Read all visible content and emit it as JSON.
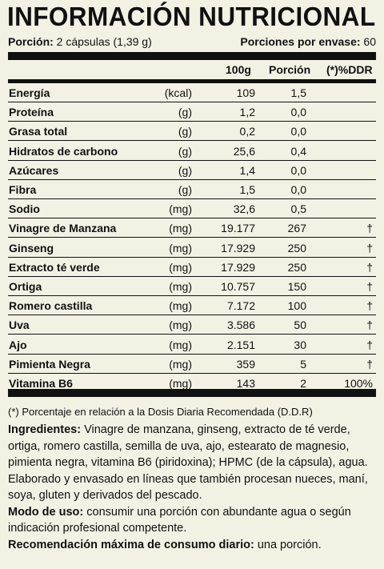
{
  "title": "INFORMACIÓN NUTRICIONAL",
  "serving": {
    "portion_label": "Porción:",
    "portion_value": "2 cápsulas (1,39 g)",
    "per_container_label": "Porciones por envase:",
    "per_container_value": "60"
  },
  "columns": {
    "per100": "100g",
    "portion": "Porción",
    "ddr": "(*)%DDR"
  },
  "rows": [
    {
      "name": "Energía",
      "unit": "(kcal)",
      "per100": "109",
      "portion": "1,5",
      "ddr": ""
    },
    {
      "name": "Proteína",
      "unit": "(g)",
      "per100": "1,2",
      "portion": "0,0",
      "ddr": ""
    },
    {
      "name": "Grasa total",
      "unit": "(g)",
      "per100": "0,2",
      "portion": "0,0",
      "ddr": ""
    },
    {
      "name": "Hidratos de carbono",
      "unit": "(g)",
      "per100": "25,6",
      "portion": "0,4",
      "ddr": ""
    },
    {
      "name": "Azúcares",
      "unit": "(g)",
      "per100": "1,4",
      "portion": "0,0",
      "ddr": ""
    },
    {
      "name": "Fibra",
      "unit": "(g)",
      "per100": "1,5",
      "portion": "0,0",
      "ddr": ""
    },
    {
      "name": "Sodio",
      "unit": "(mg)",
      "per100": "32,6",
      "portion": "0,5",
      "ddr": ""
    },
    {
      "name": "Vinagre de Manzana",
      "unit": "(mg)",
      "per100": "19.177",
      "portion": "267",
      "ddr": "†"
    },
    {
      "name": "Ginseng",
      "unit": "(mg)",
      "per100": "17.929",
      "portion": "250",
      "ddr": "†"
    },
    {
      "name": "Extracto té verde",
      "unit": "(mg)",
      "per100": "17.929",
      "portion": "250",
      "ddr": "†"
    },
    {
      "name": "Ortiga",
      "unit": "(mg)",
      "per100": "10.757",
      "portion": "150",
      "ddr": "†"
    },
    {
      "name": "Romero castilla",
      "unit": "(mg)",
      "per100": "7.172",
      "portion": "100",
      "ddr": "†"
    },
    {
      "name": "Uva",
      "unit": "(mg)",
      "per100": "3.586",
      "portion": "50",
      "ddr": "†"
    },
    {
      "name": "Ajo",
      "unit": "(mg)",
      "per100": "2.151",
      "portion": "30",
      "ddr": "†"
    },
    {
      "name": "Pimienta Negra",
      "unit": "(mg)",
      "per100": "359",
      "portion": "5",
      "ddr": "†"
    },
    {
      "name": "Vitamina B6",
      "unit": "(mg)",
      "per100": "143",
      "portion": "2",
      "ddr": "100%"
    }
  ],
  "footnote": "(*) Porcentaje en relación a la Dosis Diaria Recomendada (D.D.R)",
  "ingredients": {
    "label": "Ingredientes:",
    "text": " Vinagre de manzana, ginseng, extracto de té verde, ortiga, romero castilla, semilla de uva, ajo, estearato de magnesio, pimienta negra, vitamina B6 (piridoxina); HPMC (de la cápsula), agua."
  },
  "allergens": "Elaborado y envasado en líneas que también procesan nueces, maní, soya, gluten y derivados del pescado.",
  "usage": {
    "label": "Modo de uso:",
    "text": " consumir una porción con abundante agua o según indicación profesional competente."
  },
  "max_recommendation": {
    "label": "Recomendación máxima de consumo diario:",
    "text": " una porción."
  }
}
